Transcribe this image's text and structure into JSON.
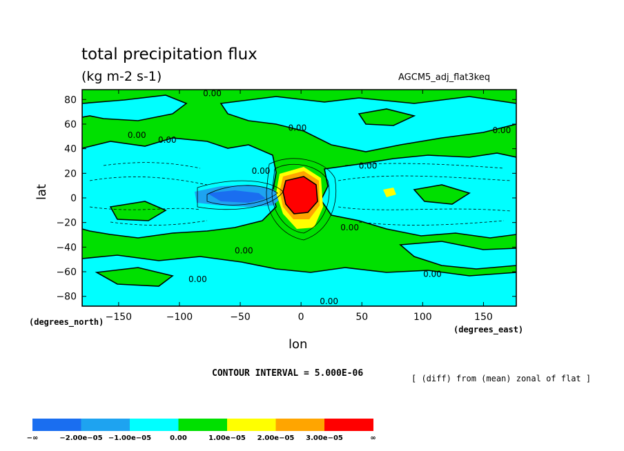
{
  "chart_data": {
    "type": "heatmap",
    "title": "total precipitation flux",
    "units": "(kg m-2 s-1)",
    "dataset": "AGCM5_adj_flat3keq",
    "xlabel": "lon",
    "ylabel": "lat",
    "x_units": "(degrees_east)",
    "y_units": "(degrees_north)",
    "xlim": [
      -180,
      177
    ],
    "ylim": [
      -88,
      88
    ],
    "x_ticks": [
      -150,
      -100,
      -50,
      0,
      50,
      100,
      150
    ],
    "y_ticks": [
      80,
      60,
      40,
      20,
      0,
      -20,
      -40,
      -60,
      -80
    ],
    "x_tick_labels": [
      "−150",
      "−100",
      "−50",
      "0",
      "50",
      "100",
      "150"
    ],
    "y_tick_labels": [
      "80",
      "60",
      "40",
      "20",
      "0",
      "−20",
      "−40",
      "−60",
      "−80"
    ],
    "contour_interval": "CONTOUR INTERVAL = 5.000E-06",
    "note": "[ (diff) from (mean) zonal of flat ]",
    "contour_labels": [
      {
        "text": "0.00",
        "lon": -73,
        "lat": 85
      },
      {
        "text": "0.00",
        "lon": -135,
        "lat": 51
      },
      {
        "text": "0.00",
        "lon": -110,
        "lat": 47
      },
      {
        "text": "0.00",
        "lon": -3,
        "lat": 57
      },
      {
        "text": "0.00",
        "lon": 165,
        "lat": 55
      },
      {
        "text": "0.00",
        "lon": 55,
        "lat": 26
      },
      {
        "text": "0.00",
        "lon": -33,
        "lat": 22
      },
      {
        "text": "0.00",
        "lon": 40,
        "lat": -24
      },
      {
        "text": "0.00",
        "lon": -47,
        "lat": -43
      },
      {
        "text": "0.00",
        "lon": -85,
        "lat": -66
      },
      {
        "text": "0.00",
        "lon": 108,
        "lat": -62
      },
      {
        "text": "0.00",
        "lon": 23,
        "lat": -84
      }
    ],
    "legend": {
      "labels": [
        "−∞",
        "−2.00e−05",
        "−1.00e−05",
        "0.00",
        "1.00e−05",
        "2.00e−05",
        "3.00e−05",
        "∞"
      ],
      "colors": [
        "#1a6ef0",
        "#1ea3f0",
        "#00ffff",
        "#00e000",
        "#ffff00",
        "#ffa500",
        "#ff0000"
      ]
    },
    "colors": {
      "positive_small": "#00e000",
      "negative_small": "#00ffff",
      "negative_mid": "#1ea3f0",
      "negative_large": "#1a6ef0",
      "positive_mid": "#ffff00",
      "positive_large": "#ffa500",
      "positive_max": "#ff0000"
    }
  }
}
